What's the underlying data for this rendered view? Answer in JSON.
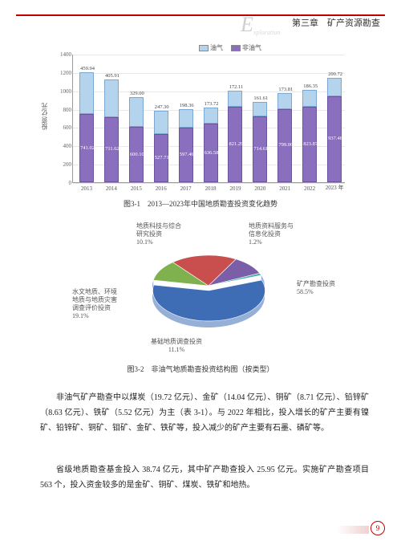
{
  "header": {
    "chapter": "第三章　矿产资源勘查",
    "decor_letter": "E",
    "decor_sub": "xploration"
  },
  "chart1": {
    "type": "stacked-bar",
    "title": "图3-1　2013—2023年中国地质勘查投资变化趋势",
    "ylabel": "投资/亿元",
    "ylim": [
      0,
      1400
    ],
    "ytick_step": 200,
    "background_color": "#ffffff",
    "grid_color": "#e8e8e8",
    "colors": {
      "oil": "#b4d3ec",
      "nonoil": "#8a6fbf"
    },
    "legend": {
      "oil": "油气",
      "nonoil": "非油气"
    },
    "years": [
      "2013",
      "2014",
      "2015",
      "2016",
      "2017",
      "2018",
      "2019",
      "2020",
      "2021",
      "2022",
      "2023 年"
    ],
    "oil": [
      459.94,
      405.91,
      329.0,
      247.3,
      198.36,
      173.72,
      172.11,
      161.61,
      173.81,
      186.35,
      200.72
    ],
    "nonoil": [
      741.02,
      711.62,
      600.1,
      527.71,
      597.46,
      636.58,
      821.29,
      714.61,
      799.06,
      823.87,
      937.48
    ]
  },
  "chart2": {
    "type": "pie-3d",
    "title": "图3-2　非油气地质勘查投资结构图（按类型）",
    "slices": [
      {
        "label": "矿产勘查投资",
        "pct": "58.5%",
        "color": "#3e6db5"
      },
      {
        "label": "基础地质调查投资",
        "pct": "11.1%",
        "color": "#7fb24f"
      },
      {
        "label": "水文地质、环境\n地质与地质灾害\n调查评价投资",
        "pct": "19.1%",
        "color": "#c94f4f"
      },
      {
        "label": "地质科技与综合\n研究投资",
        "pct": "10.1%",
        "color": "#7a5fa8"
      },
      {
        "label": "地质资料服务与\n信息化投资",
        "pct": "1.2%",
        "color": "#4fb0a8"
      }
    ]
  },
  "paragraphs": {
    "p1": "非油气矿产勘查中以煤炭（19.72 亿元）、金矿（14.04 亿元）、铜矿（8.71 亿元）、铅锌矿（8.63 亿元）、铁矿（5.52 亿元）为主（表 3-1）。与 2022 年相比，投入增长的矿产主要有镍矿、铅锌矿、铜矿、钼矿、金矿、铁矿等，投入减少的矿产主要有石墨、磷矿等。",
    "p2": "省级地质勘查基金投入 38.74 亿元，其中矿产勘查投入 25.95 亿元。实施矿产勘查项目 563 个，投入资金较多的是金矿、铜矿、煤炭、铁矿和地热。"
  },
  "page_number": "9"
}
